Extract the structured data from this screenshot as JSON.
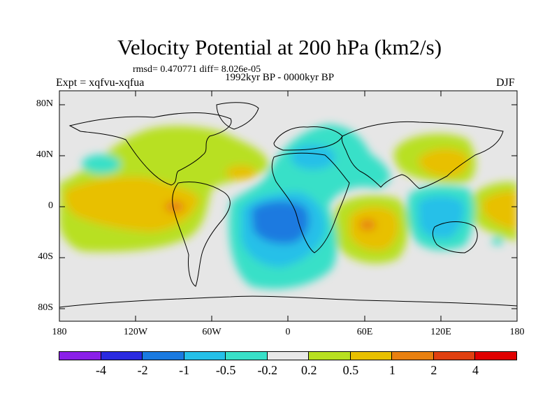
{
  "header": {
    "title": "Velocity Potential at 200 hPa (km2/s)",
    "stats": "rmsd= 0.470771 diff= 8.026e-05",
    "experiment": "Expt = xqfvu-xqfua",
    "period": "1992kyr BP - 0000kyr BP",
    "season": "DJF"
  },
  "axes": {
    "lat_labels": [
      "80N",
      "40N",
      "0",
      "40S",
      "80S"
    ],
    "lon_labels": [
      "180",
      "120W",
      "60W",
      "0",
      "60E",
      "120E",
      "180"
    ]
  },
  "colorbar": {
    "colors": [
      "#8a1fe8",
      "#2a2ae0",
      "#1a7ae0",
      "#25c0e8",
      "#38e0c8",
      "#e8e8e8",
      "#b8e020",
      "#e8c000",
      "#e88010",
      "#e04010",
      "#e00000"
    ],
    "labels": [
      "-4",
      "-2",
      "-1",
      "-0.5",
      "-0.2",
      "0.2",
      "0.5",
      "1",
      "2",
      "4"
    ]
  }
}
